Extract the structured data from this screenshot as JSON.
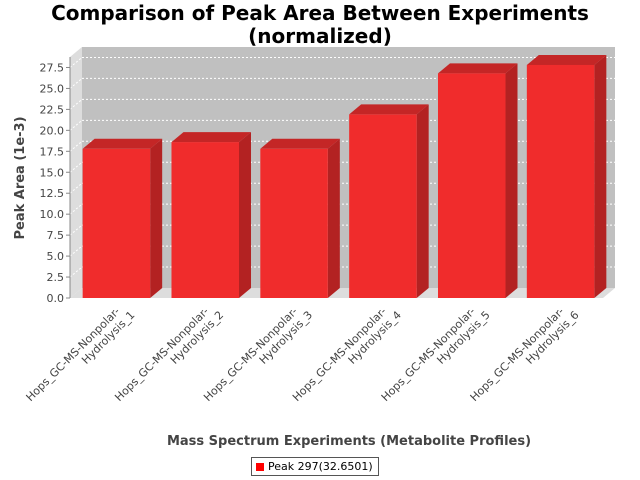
{
  "chart_data": {
    "type": "bar",
    "title_line1": "Comparison of Peak Area Between Experiments",
    "title_line2": "(normalized)",
    "xlabel": "Mass Spectrum Experiments (Metabolite Profiles)",
    "ylabel": "Peak Area (1e-3)",
    "categories": [
      [
        "Hops_GC-MS-Nonpolar-",
        "Hydrolysis_1"
      ],
      [
        "Hops_GC-MS-Nonpolar-",
        "Hydrolysis_2"
      ],
      [
        "Hops_GC-MS-Nonpolar-",
        "Hydrolysis_3"
      ],
      [
        "Hops_GC-MS-Nonpolar-",
        "Hydrolysis_4"
      ],
      [
        "Hops_GC-MS-Nonpolar-",
        "Hydrolysis_5"
      ],
      [
        "Hops_GC-MS-Nonpolar-",
        "Hydrolysis_6"
      ]
    ],
    "series": [
      {
        "name": "Peak 297(32.6501)",
        "values": [
          17.8,
          18.6,
          17.8,
          21.9,
          26.8,
          27.8
        ]
      }
    ],
    "yticks": [
      "0.0",
      "2.5",
      "5.0",
      "7.5",
      "10.0",
      "12.5",
      "15.0",
      "17.5",
      "20.0",
      "22.5",
      "25.0",
      "27.5"
    ],
    "ylim": [
      0,
      28.75
    ],
    "grid": true,
    "legend_position": "bottom",
    "style": "3d",
    "colors": {
      "bar_front": "#f02c2c",
      "bar_side": "#b32222",
      "bar_top": "#c42626",
      "plot_background": "#c0c0c0",
      "plot_wall": "#dddddd",
      "gridline": "#ffffff",
      "legend_swatch": "#ff0000"
    }
  }
}
